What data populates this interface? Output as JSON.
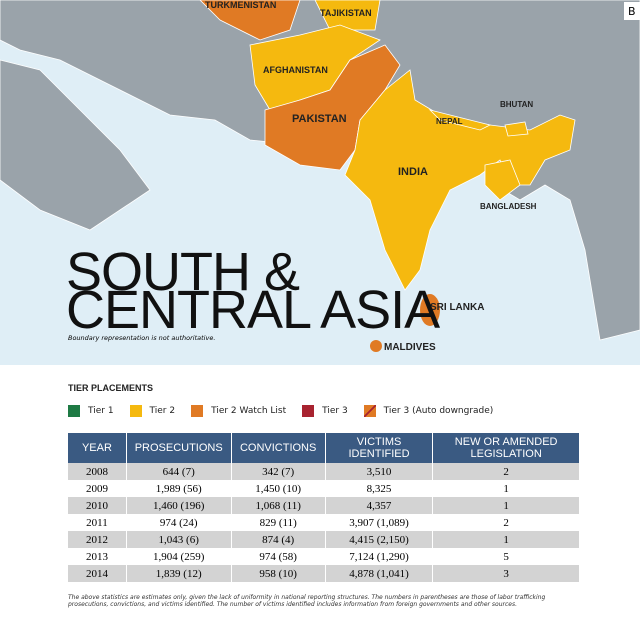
{
  "map": {
    "corner_label": "B",
    "title_line1": "SOUTH &",
    "title_line2": "CENTRAL ASIA",
    "note": "Boundary representation is not authoritative.",
    "countries": [
      "TURKMENISTAN",
      "TAJIKISTAN",
      "AFGHANISTAN",
      "PAKISTAN",
      "INDIA",
      "NEPAL",
      "BHUTAN",
      "BANGLADESH",
      "SRI LANKA",
      "MALDIVES"
    ]
  },
  "legend": {
    "title": "TIER PLACEMENTS",
    "items": [
      {
        "label": "Tier 1",
        "color": "#1e7a44"
      },
      {
        "label": "Tier 2",
        "color": "#f5b90f"
      },
      {
        "label": "Tier 2 Watch List",
        "color": "#e07a24"
      },
      {
        "label": "Tier 3",
        "color": "#a82330"
      },
      {
        "label": "Tier 3 (Auto downgrade)",
        "color": "#e07a24"
      }
    ]
  },
  "table": {
    "headers": [
      "YEAR",
      "PROSECUTIONS",
      "CONVICTIONS",
      "VICTIMS IDENTIFIED",
      "NEW OR AMENDED LEGISLATION"
    ],
    "rows": [
      [
        "2008",
        "644 (7)",
        "342 (7)",
        "3,510",
        "2"
      ],
      [
        "2009",
        "1,989 (56)",
        "1,450 (10)",
        "8,325",
        "1"
      ],
      [
        "2010",
        "1,460 (196)",
        "1,068 (11)",
        "4,357",
        "1"
      ],
      [
        "2011",
        "974 (24)",
        "829 (11)",
        "3,907 (1,089)",
        "2"
      ],
      [
        "2012",
        "1,043 (6)",
        "874 (4)",
        "4,415 (2,150)",
        "1"
      ],
      [
        "2013",
        "1,904 (259)",
        "974 (58)",
        "7,124 (1,290)",
        "5"
      ],
      [
        "2014",
        "1,839 (12)",
        "958 (10)",
        "4,878 (1,041)",
        "3"
      ]
    ]
  },
  "footnote": "The above statistics are estimates only, given the lack of uniformity in national reporting structures. The numbers in parentheses are those of labor trafficking prosecutions, convictions, and victims identified. The number of victims identified includes information from foreign governments and other sources."
}
